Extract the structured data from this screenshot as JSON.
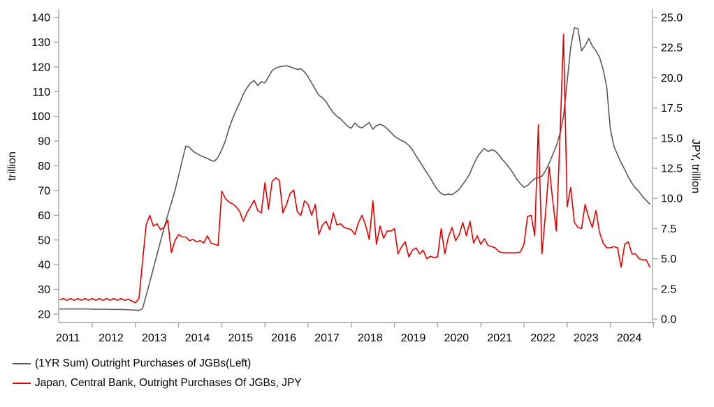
{
  "legend": {
    "items": [
      {
        "label": "(1YR Sum) Outright Purchases of JGBs(Left)",
        "color": "#595959"
      },
      {
        "label": "Japan, Central Bank, Outright Purchases Of JGBs, JPY",
        "color": "#e60000"
      }
    ]
  },
  "chart_data": {
    "type": "line",
    "title": "",
    "background": "#ffffff",
    "grid": "off",
    "legend_position": "bottom-left",
    "x_axis": {
      "unit": "year",
      "frequency": "monthly",
      "tick_labels": [
        "2011",
        "2012",
        "2013",
        "2014",
        "2015",
        "2016",
        "2017",
        "2018",
        "2019",
        "2020",
        "2021",
        "2022",
        "2023",
        "2024"
      ],
      "range": [
        2011.2,
        2025.05
      ]
    },
    "y_axis_left": {
      "label": "trillion",
      "range": [
        20,
        140
      ],
      "tick_values": [
        20,
        30,
        40,
        50,
        60,
        70,
        80,
        90,
        100,
        110,
        120,
        130,
        140
      ],
      "tick_labels": [
        "20",
        "30",
        "40",
        "50",
        "60",
        "70",
        "80",
        "90",
        "100",
        "110",
        "120",
        "130",
        "140"
      ]
    },
    "y_axis_right": {
      "label": "JPY, trillion",
      "range": [
        0,
        25
      ],
      "tick_values": [
        0,
        2.5,
        5,
        7.5,
        10,
        12.5,
        15,
        17.5,
        20,
        22.5,
        25
      ],
      "tick_labels": [
        "0.0",
        "2.5",
        "5.0",
        "7.5",
        "10.0",
        "12.5",
        "15.0",
        "17.5",
        "20.0",
        "22.5",
        "25.0"
      ]
    },
    "series": [
      {
        "id": "jgb-1yr-sum-line",
        "name": "(1YR Sum) Outright Purchases of JGBs(Left)",
        "axis": "left",
        "color": "#595959",
        "x_start": 2011.25,
        "x_step": 0.0833333,
        "values": [
          22.1,
          22.1,
          22.1,
          22.1,
          22.1,
          22.1,
          22.1,
          22.1,
          22.1,
          22.0,
          22.0,
          22.0,
          22.0,
          22.0,
          21.9,
          21.9,
          21.9,
          21.9,
          21.8,
          21.8,
          21.7,
          21.6,
          21.5,
          22.3,
          27.5,
          33.0,
          38.5,
          44.0,
          49.5,
          55.0,
          60.0,
          65.0,
          70.0,
          76.0,
          82.0,
          88.0,
          87.5,
          86.0,
          85.0,
          84.2,
          83.6,
          83.0,
          82.2,
          81.8,
          83.5,
          86.5,
          90.0,
          95.0,
          99.0,
          102.5,
          105.5,
          109.0,
          111.5,
          113.5,
          114.5,
          112.5,
          114.0,
          113.5,
          116.0,
          118.5,
          119.5,
          120.0,
          120.3,
          120.5,
          120.0,
          119.5,
          119.0,
          119.2,
          118.0,
          116.0,
          113.5,
          111.0,
          108.5,
          107.5,
          106.0,
          103.5,
          101.5,
          100.0,
          99.0,
          97.5,
          96.0,
          95.2,
          97.3,
          95.8,
          95.3,
          96.5,
          97.5,
          94.8,
          96.2,
          96.8,
          96.2,
          95.0,
          93.5,
          92.0,
          91.0,
          90.2,
          89.5,
          88.3,
          86.5,
          84.0,
          81.8,
          79.5,
          77.2,
          75.0,
          72.5,
          70.3,
          68.8,
          68.2,
          68.6,
          68.3,
          69.3,
          70.5,
          72.5,
          74.5,
          77.0,
          80.5,
          83.5,
          85.5,
          87.0,
          85.8,
          86.5,
          86.0,
          84.5,
          82.5,
          81.0,
          79.0,
          77.0,
          74.5,
          72.8,
          71.3,
          72.0,
          73.5,
          74.8,
          75.2,
          75.8,
          78.0,
          81.0,
          84.5,
          88.0,
          93.0,
          100.0,
          114.0,
          128.0,
          135.8,
          135.5,
          126.5,
          128.5,
          131.5,
          128.5,
          126.5,
          124.0,
          119.0,
          112.0,
          95.0,
          88.0,
          84.5,
          81.3,
          78.5,
          75.5,
          73.0,
          71.0,
          69.5,
          67.5,
          66.0,
          64.5
        ]
      },
      {
        "id": "boj-monthly-purchases-line",
        "name": "Japan, Central Bank, Outright Purchases Of JGBs, JPY",
        "axis": "right",
        "color": "#e60000",
        "x_start": 2011.25,
        "x_step": 0.0833333,
        "values": [
          1.6,
          1.7,
          1.55,
          1.7,
          1.55,
          1.7,
          1.55,
          1.7,
          1.55,
          1.7,
          1.55,
          1.7,
          1.55,
          1.7,
          1.55,
          1.7,
          1.55,
          1.7,
          1.55,
          1.65,
          1.5,
          1.35,
          1.7,
          4.8,
          7.8,
          8.6,
          7.7,
          7.9,
          7.4,
          7.6,
          8.2,
          5.5,
          6.5,
          7.0,
          6.8,
          6.8,
          6.5,
          6.6,
          6.4,
          6.5,
          6.3,
          6.9,
          6.3,
          6.2,
          6.1,
          10.6,
          10.0,
          9.7,
          9.55,
          9.3,
          8.9,
          8.1,
          8.8,
          9.3,
          9.85,
          9.0,
          8.8,
          11.3,
          9.1,
          11.4,
          11.7,
          11.5,
          8.8,
          9.5,
          10.4,
          10.7,
          8.9,
          8.6,
          9.8,
          9.5,
          8.6,
          9.5,
          7.0,
          7.8,
          8.1,
          7.4,
          8.8,
          7.8,
          7.9,
          7.6,
          7.5,
          7.4,
          7.0,
          8.0,
          8.6,
          7.75,
          6.6,
          9.8,
          6.2,
          7.7,
          6.7,
          7.3,
          7.3,
          7.5,
          5.4,
          6.0,
          6.4,
          5.15,
          5.7,
          5.9,
          5.4,
          5.7,
          5.0,
          5.2,
          5.1,
          5.15,
          7.5,
          5.4,
          6.8,
          7.6,
          6.5,
          7.0,
          8.0,
          6.9,
          8.1,
          6.3,
          6.9,
          6.2,
          6.65,
          6.1,
          6.0,
          5.9,
          5.6,
          5.5,
          5.5,
          5.5,
          5.5,
          5.5,
          5.55,
          6.2,
          8.5,
          8.6,
          6.9,
          16.1,
          5.4,
          8.8,
          12.6,
          9.8,
          7.3,
          15.0,
          23.6,
          9.3,
          10.9,
          8.0,
          7.6,
          7.5,
          9.5,
          8.4,
          7.6,
          9.0,
          7.2,
          6.3,
          5.9,
          5.9,
          6.0,
          5.9,
          4.3,
          6.2,
          6.4,
          5.4,
          5.4,
          5.0,
          4.9,
          4.9,
          4.3
        ]
      }
    ]
  }
}
